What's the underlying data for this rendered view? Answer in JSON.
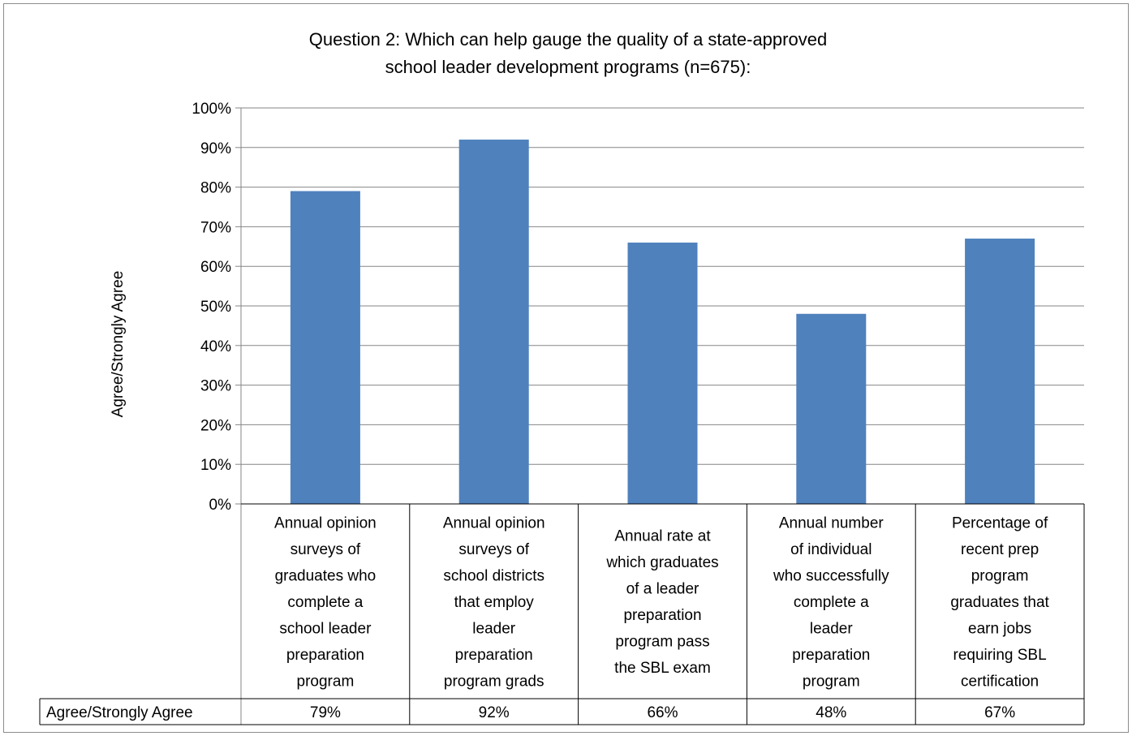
{
  "chart_data": {
    "type": "bar",
    "title": "Question 2:  Which can help gauge the quality of a state-approved school leader development programs (n=675):",
    "title_lines": [
      "Question 2:  Which can help gauge the quality of a state-approved",
      "school leader development programs (n=675):"
    ],
    "ylabel": "Agree/Strongly Agree",
    "xlabel": "",
    "ylim": [
      0,
      100
    ],
    "ytick_labels": [
      "0%",
      "10%",
      "20%",
      "30%",
      "40%",
      "50%",
      "60%",
      "70%",
      "80%",
      "90%",
      "100%"
    ],
    "grid": true,
    "legend": "data-table",
    "bar_color": "#4F81BD",
    "categories": [
      "Annual opinion surveys of graduates who complete a school leader preparation program",
      "Annual opinion surveys of school districts that employ leader preparation program grads",
      "Annual rate at which graduates of a leader preparation program pass the SBL exam",
      "Annual number of individual who successfully complete a leader preparation program",
      "Percentage of recent prep program graduates that earn jobs requiring SBL certification"
    ],
    "category_lines": [
      [
        "Annual opinion",
        "surveys of",
        "graduates who",
        "complete a",
        "school leader",
        "preparation",
        "program"
      ],
      [
        "Annual opinion",
        "surveys of",
        "school districts",
        "that employ",
        "leader",
        "preparation",
        "program grads"
      ],
      [
        "Annual rate at",
        "which graduates",
        "of a leader",
        "preparation",
        "program pass",
        "the SBL exam"
      ],
      [
        "Annual number",
        "of individual",
        "who successfully",
        "complete a",
        "leader",
        "preparation",
        "program"
      ],
      [
        "Percentage of",
        "recent prep",
        "program",
        "graduates that",
        "earn jobs",
        "requiring SBL",
        "certification"
      ]
    ],
    "series": [
      {
        "name": "Agree/Strongly Agree",
        "values": [
          79,
          92,
          66,
          48,
          67
        ],
        "labels": [
          "79%",
          "92%",
          "66%",
          "48%",
          "67%"
        ]
      }
    ]
  }
}
